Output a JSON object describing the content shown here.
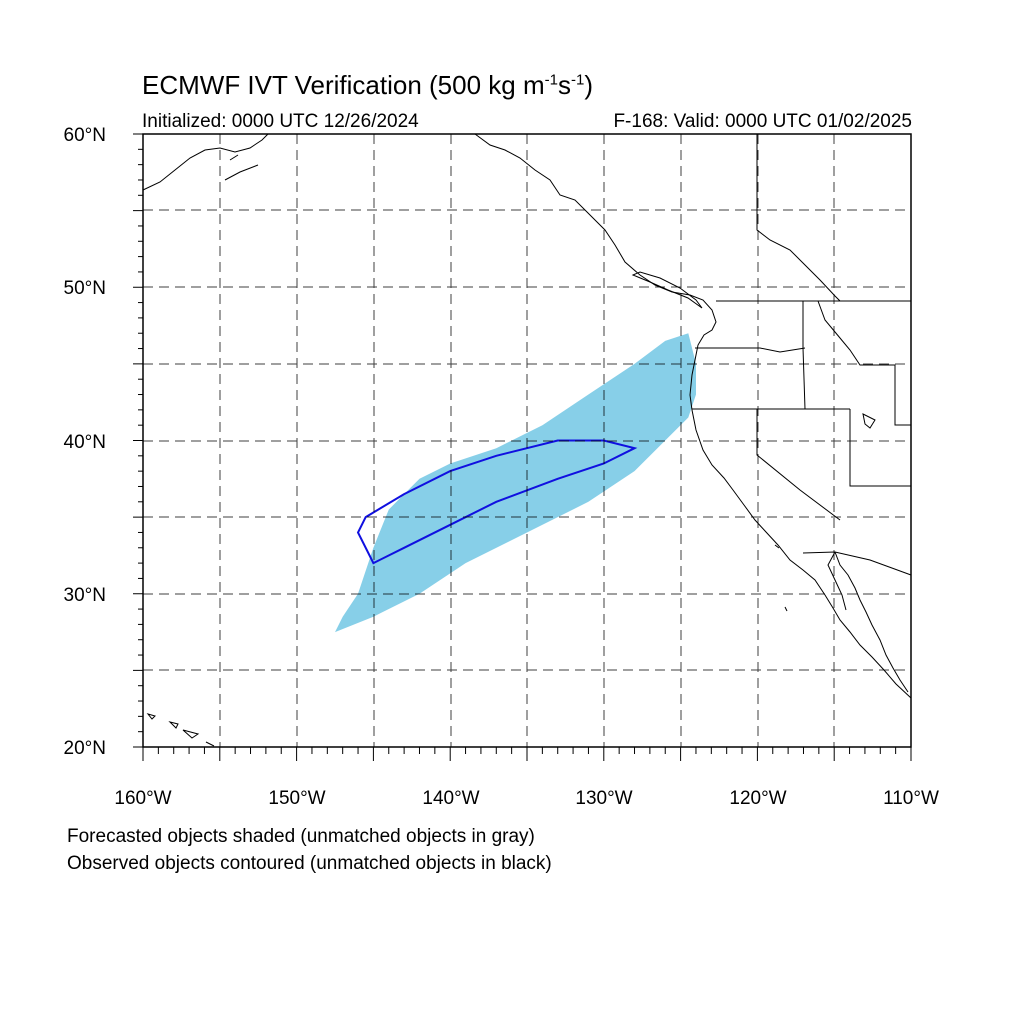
{
  "title": {
    "main": "ECMWF IVT Verification (500 kg m",
    "exp1": "-1",
    "mid": "s",
    "exp2": "-1",
    "close": ")"
  },
  "initialized": "Initialized: 0000 UTC 12/26/2024",
  "valid": "F-168: Valid: 0000 UTC 01/02/2025",
  "lat_labels": [
    "60°N",
    "50°N",
    "40°N",
    "30°N",
    "20°N"
  ],
  "lon_labels": [
    "160°W",
    "150°W",
    "140°W",
    "130°W",
    "120°W",
    "110°W"
  ],
  "notes": [
    "Forecasted objects shaded (unmatched objects in gray)",
    "Observed objects contoured (unmatched objects in black)"
  ],
  "colors": {
    "forecast_fill": "#87cfe8",
    "observed_contour": "#1010e0",
    "coastline": "#000000",
    "grid": "#000000"
  },
  "chart_data": {
    "type": "map",
    "projection": "cylindrical equidistant",
    "lon_range": [
      -160,
      -110
    ],
    "lat_range": [
      20,
      60
    ],
    "grid_spacing_deg": 5,
    "forecast_object": {
      "description_lon_lat": [
        [
          -147.5,
          27.5
        ],
        [
          -145,
          28.5
        ],
        [
          -142,
          30
        ],
        [
          -139,
          32
        ],
        [
          -135,
          34
        ],
        [
          -131,
          36
        ],
        [
          -128,
          38
        ],
        [
          -126,
          40
        ],
        [
          -124.5,
          41.5
        ],
        [
          -124,
          43
        ],
        [
          -124,
          45
        ],
        [
          -124.5,
          47
        ],
        [
          -126,
          46.5
        ],
        [
          -128,
          45
        ],
        [
          -131,
          43
        ],
        [
          -134,
          41
        ],
        [
          -137,
          39.5
        ],
        [
          -140,
          38.5
        ],
        [
          -142,
          37.5
        ],
        [
          -144,
          35.5
        ],
        [
          -145,
          33
        ],
        [
          -146,
          30
        ],
        [
          -147,
          28.5
        ]
      ]
    },
    "observed_object": {
      "lon_lat": [
        [
          -145,
          32
        ],
        [
          -143,
          33
        ],
        [
          -140,
          34.5
        ],
        [
          -137,
          36
        ],
        [
          -133,
          37.5
        ],
        [
          -130,
          38.5
        ],
        [
          -128,
          39.5
        ],
        [
          -130,
          40
        ],
        [
          -133,
          40
        ],
        [
          -137,
          39
        ],
        [
          -140,
          38
        ],
        [
          -143,
          36.5
        ],
        [
          -145.5,
          35
        ],
        [
          -146,
          34
        ],
        [
          -145,
          32
        ]
      ]
    }
  }
}
